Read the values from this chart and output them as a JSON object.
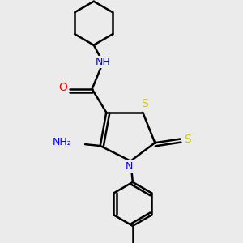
{
  "background_color": "#ebebeb",
  "atom_colors": {
    "S": "#cccc00",
    "N": "#0000ff",
    "O": "#ff0000",
    "C": "#000000",
    "H": "#808080"
  },
  "bond_color": "#000000",
  "bond_width": 1.8,
  "font_size": 9
}
